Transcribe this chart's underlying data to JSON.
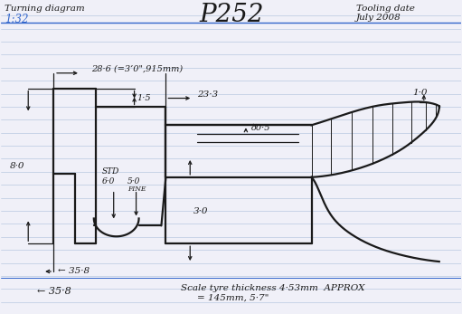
{
  "bg_color": "#f0f0f8",
  "line_color": "#1a1a1a",
  "blue_color": "#3366cc",
  "ruled_color": "#b8c8e0",
  "top_left_1": "Turning diagram",
  "top_left_2": "1:32",
  "top_right_1": "Tooling date",
  "top_right_2": "July 2008",
  "title": "P252",
  "dim_28_6": "28·6 (=3’0\",915mm)",
  "dim_23_3": "23·3",
  "dim_1_5": "1·5",
  "dim_0_5": "ð0·5",
  "dim_8_0": "8·0",
  "dim_3_0": "3·0",
  "dim_1_0": "1·0",
  "dim_std": "STD",
  "dim_6_0": "6·0",
  "dim_5_0": "5·0",
  "dim_fine": "FINE",
  "bottom_arrow": "← 35·8",
  "bottom_scale": "Scale tyre thickness 4·53mm  APPROX",
  "bottom_scale2": "= 145mm, 5·7\""
}
